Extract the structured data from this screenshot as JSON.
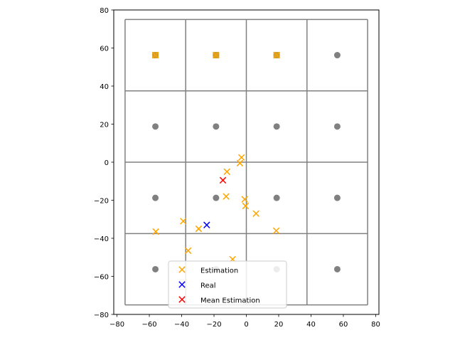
{
  "chart_data": {
    "type": "scatter",
    "title": "",
    "xlabel": "",
    "ylabel": "",
    "xlim": [
      -82,
      82
    ],
    "ylim": [
      -80,
      80
    ],
    "xticks": [
      -80,
      -60,
      -40,
      -20,
      0,
      20,
      40,
      60,
      80
    ],
    "yticks": [
      -80,
      -60,
      -40,
      -20,
      0,
      20,
      40,
      60,
      80
    ],
    "xtick_labels": [
      "−80",
      "−60",
      "−40",
      "−20",
      "0",
      "20",
      "40",
      "60",
      "80"
    ],
    "ytick_labels": [
      "−80",
      "−60",
      "−40",
      "−20",
      "0",
      "20",
      "40",
      "60",
      "80"
    ],
    "grid": false,
    "grid_cells": {
      "edges": [
        -75,
        -37.5,
        0,
        37.5,
        75
      ],
      "color": "#808080"
    },
    "anchors": {
      "color": "#808080",
      "marker": "circle",
      "points": [
        [
          -56.25,
          56.25
        ],
        [
          -18.75,
          56.25
        ],
        [
          18.75,
          56.25
        ],
        [
          56.25,
          56.25
        ],
        [
          -56.25,
          18.75
        ],
        [
          -18.75,
          18.75
        ],
        [
          18.75,
          18.75
        ],
        [
          56.25,
          18.75
        ],
        [
          -56.25,
          -18.75
        ],
        [
          -18.75,
          -18.75
        ],
        [
          18.75,
          -18.75
        ],
        [
          56.25,
          -18.75
        ],
        [
          -56.25,
          -56.25
        ],
        [
          -18.75,
          -56.25
        ],
        [
          18.75,
          -56.25
        ],
        [
          56.25,
          -56.25
        ]
      ]
    },
    "highlighted_anchors": {
      "color": "#d9a020",
      "marker": "square",
      "points": [
        [
          -56.25,
          56.25
        ],
        [
          -18.75,
          56.25
        ],
        [
          18.75,
          56.25
        ]
      ]
    },
    "series": [
      {
        "name": "Estimation",
        "color": "#ffa500",
        "marker": "x",
        "points": [
          [
            -3,
            2.5
          ],
          [
            -4,
            -0.5
          ],
          [
            -12,
            -5
          ],
          [
            -12.5,
            -18
          ],
          [
            -1,
            -19.5
          ],
          [
            -0.5,
            -23
          ],
          [
            6,
            -27
          ],
          [
            -39,
            -31
          ],
          [
            -29.5,
            -35
          ],
          [
            18.5,
            -36
          ],
          [
            -56,
            -36.5
          ],
          [
            -36,
            -46.5
          ],
          [
            -8.5,
            -51
          ]
        ]
      },
      {
        "name": "Real",
        "color": "#0000ff",
        "marker": "x",
        "points": [
          [
            -24.5,
            -33
          ]
        ]
      },
      {
        "name": "Mean Estimation",
        "color": "#ff0000",
        "marker": "x",
        "points": [
          [
            -14.5,
            -9.5
          ]
        ]
      }
    ],
    "legend": {
      "placement": "lower-center",
      "entries": [
        "Estimation",
        "Real",
        "Mean Estimation"
      ]
    }
  }
}
